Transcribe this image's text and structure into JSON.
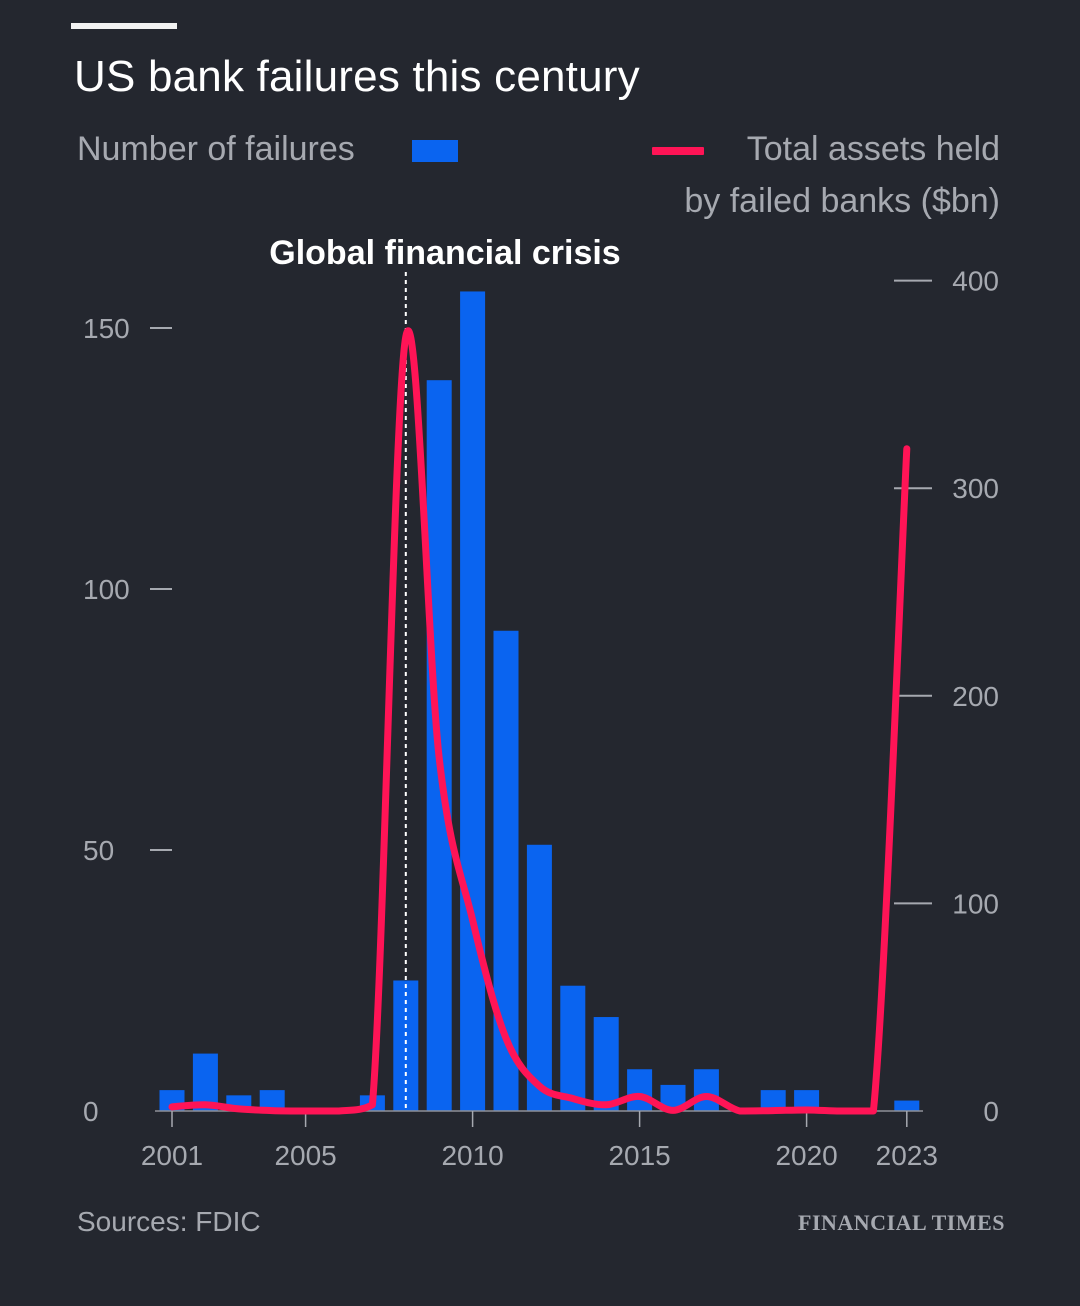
{
  "header": {
    "title": "US bank failures this century"
  },
  "legend": {
    "bars_label": "Number of failures",
    "line_label_1": "Total assets held",
    "line_label_2": "by failed banks ($bn)"
  },
  "annotation": {
    "label": "Global financial crisis",
    "x": 2008
  },
  "footer": {
    "source": "Sources: FDIC",
    "brand": "FINANCIAL TIMES"
  },
  "colors": {
    "background": "#24272f",
    "bars": "#0a64f0",
    "line": "#ff1456",
    "axis_text": "#a6a9b0"
  },
  "chart_data": {
    "type": "bar",
    "title": "US bank failures this century",
    "categories": [
      2001,
      2002,
      2003,
      2004,
      2005,
      2006,
      2007,
      2008,
      2009,
      2010,
      2011,
      2012,
      2013,
      2014,
      2015,
      2016,
      2017,
      2018,
      2019,
      2020,
      2021,
      2022,
      2023
    ],
    "series": [
      {
        "name": "Number of failures",
        "type": "bar",
        "axis": "left",
        "values": [
          4,
          11,
          3,
          4,
          0,
          0,
          3,
          25,
          140,
          157,
          92,
          51,
          24,
          18,
          8,
          5,
          8,
          0,
          4,
          4,
          0,
          0,
          2
        ]
      },
      {
        "name": "Total assets held by failed banks ($bn)",
        "type": "line",
        "axis": "right",
        "values": [
          2,
          3,
          1,
          0.2,
          0,
          0,
          3,
          373,
          170,
          92,
          35,
          12,
          6,
          3,
          7,
          0.3,
          7,
          0,
          0.2,
          0.5,
          0,
          0,
          319
        ]
      }
    ],
    "x_ticks": [
      2001,
      2005,
      2010,
      2015,
      2020,
      2023
    ],
    "y_left": {
      "ticks": [
        0,
        50,
        100,
        150
      ],
      "range": [
        0,
        160
      ]
    },
    "y_right": {
      "ticks": [
        0,
        100,
        200,
        300,
        400
      ],
      "range": [
        0,
        400
      ]
    },
    "xlabel": "",
    "ylabel_left": "Number of failures",
    "ylabel_right": "Total assets held by failed banks ($bn)"
  }
}
